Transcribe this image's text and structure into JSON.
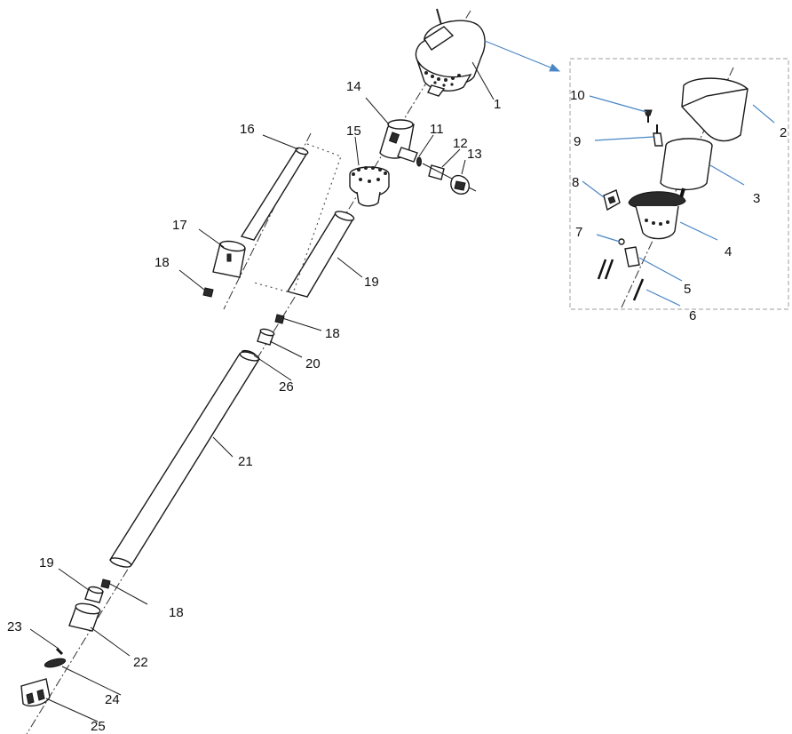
{
  "diagram": {
    "callouts": [
      {
        "id": "1",
        "label": "1"
      },
      {
        "id": "2",
        "label": "2"
      },
      {
        "id": "3",
        "label": "3"
      },
      {
        "id": "4",
        "label": "4"
      },
      {
        "id": "5",
        "label": "5"
      },
      {
        "id": "6",
        "label": "6"
      },
      {
        "id": "7",
        "label": "7"
      },
      {
        "id": "8",
        "label": "8"
      },
      {
        "id": "9",
        "label": "9"
      },
      {
        "id": "10",
        "label": "10"
      },
      {
        "id": "11",
        "label": "11"
      },
      {
        "id": "12",
        "label": "12"
      },
      {
        "id": "13",
        "label": "13"
      },
      {
        "id": "14",
        "label": "14"
      },
      {
        "id": "15",
        "label": "15"
      },
      {
        "id": "16",
        "label": "16"
      },
      {
        "id": "17",
        "label": "17"
      },
      {
        "id": "18a",
        "label": "18"
      },
      {
        "id": "19a",
        "label": "19"
      },
      {
        "id": "18b",
        "label": "18"
      },
      {
        "id": "20",
        "label": "20"
      },
      {
        "id": "26",
        "label": "26"
      },
      {
        "id": "21",
        "label": "21"
      },
      {
        "id": "19b",
        "label": "19"
      },
      {
        "id": "18c",
        "label": "18"
      },
      {
        "id": "23",
        "label": "23"
      },
      {
        "id": "22",
        "label": "22"
      },
      {
        "id": "24",
        "label": "24"
      },
      {
        "id": "25",
        "label": "25"
      }
    ],
    "colors": {
      "inset_arrow": "#4a86c5",
      "inset_border": "#b0b0b0",
      "line": "#1a1a1a"
    }
  }
}
